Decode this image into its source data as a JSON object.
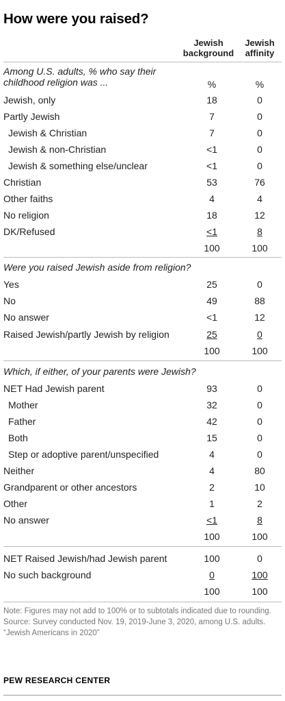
{
  "title": "How were you raised?",
  "columns": {
    "col1": "Jewish background",
    "col1_line1": "Jewish",
    "col1_line2": "background",
    "col2_line1": "Jewish",
    "col2_line2": "affinity"
  },
  "sections": {
    "religion": {
      "question_line1": "Among U.S. adults, % who say their",
      "question_line2": "childhood religion was ...",
      "pct1": "%",
      "pct2": "%",
      "rows": [
        {
          "label": "Jewish, only",
          "v1": "18",
          "v2": "0"
        },
        {
          "label": "Partly Jewish",
          "v1": "7",
          "v2": "0"
        },
        {
          "label": "Jewish & Christian",
          "v1": "7",
          "v2": "0"
        },
        {
          "label": "Jewish & non-Christian",
          "v1": "<1",
          "v2": "0"
        },
        {
          "label": "Jewish & something else/unclear",
          "v1": "<1",
          "v2": "0"
        },
        {
          "label": "Christian",
          "v1": "53",
          "v2": "76"
        },
        {
          "label": "Other faiths",
          "v1": "4",
          "v2": "4"
        },
        {
          "label": "No religion",
          "v1": "18",
          "v2": "12"
        },
        {
          "label": "DK/Refused",
          "v1": "<1",
          "v2": "8"
        }
      ],
      "total1": "100",
      "total2": "100"
    },
    "aside": {
      "question": "Were you raised Jewish aside from religion?",
      "rows": [
        {
          "label": "Yes",
          "v1": "25",
          "v2": "0"
        },
        {
          "label": "No",
          "v1": "49",
          "v2": "88"
        },
        {
          "label": "No answer",
          "v1": "<1",
          "v2": "12"
        },
        {
          "label": "Raised Jewish/partly Jewish by religion",
          "v1": "25",
          "v2": "0"
        }
      ],
      "total1": "100",
      "total2": "100"
    },
    "parents": {
      "question": "Which, if either, of your parents were Jewish?",
      "rows": [
        {
          "label": "NET Had Jewish parent",
          "v1": "93",
          "v2": "0"
        },
        {
          "label": "Mother",
          "v1": "32",
          "v2": "0"
        },
        {
          "label": "Father",
          "v1": "42",
          "v2": "0"
        },
        {
          "label": "Both",
          "v1": "15",
          "v2": "0"
        },
        {
          "label": "Step or adoptive parent/unspecified",
          "v1": "4",
          "v2": "0"
        },
        {
          "label": "Neither",
          "v1": "4",
          "v2": "80"
        },
        {
          "label": "Grandparent or other ancestors",
          "v1": "2",
          "v2": "10"
        },
        {
          "label": "Other",
          "v1": "1",
          "v2": "2"
        },
        {
          "label": "No answer",
          "v1": "<1",
          "v2": "8"
        }
      ],
      "total1": "100",
      "total2": "100"
    },
    "net": {
      "rows": [
        {
          "label": "NET Raised Jewish/had Jewish parent",
          "v1": "100",
          "v2": "0"
        },
        {
          "label": "No such background",
          "v1": "0",
          "v2": "100"
        }
      ],
      "total1": "100",
      "total2": "100"
    }
  },
  "notes": {
    "note": "Note: Figures may not add to 100% or to subtotals indicated due to rounding.",
    "source": "Source: Survey conducted Nov. 19, 2019-June 3, 2020, among U.S. adults.",
    "report": "“Jewish Americans in 2020”"
  },
  "source_label": "PEW RESEARCH CENTER"
}
